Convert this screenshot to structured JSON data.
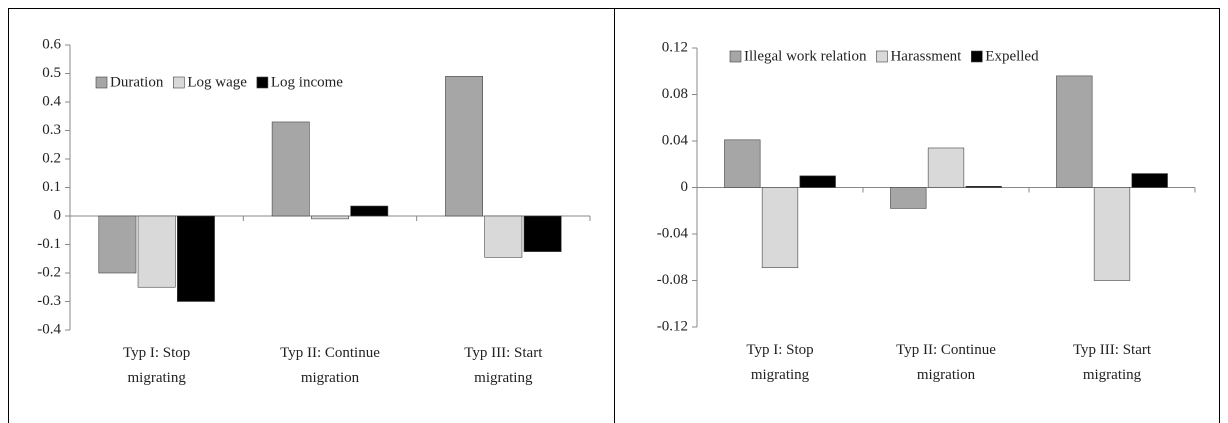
{
  "chart_data": [
    {
      "type": "bar",
      "categories": [
        "Typ I: Stop\nmigrating",
        "Typ II: Continue\nmigration",
        "Typ III: Start\nmigrating"
      ],
      "series": [
        {
          "name": "Duration",
          "color": "#a6a6a6",
          "values": [
            -0.2,
            0.33,
            0.49
          ]
        },
        {
          "name": "Log wage",
          "color": "#d9d9d9",
          "values": [
            -0.25,
            -0.01,
            -0.145
          ]
        },
        {
          "name": "Log income",
          "color": "#000000",
          "values": [
            -0.3,
            0.035,
            -0.125
          ]
        }
      ],
      "ylim": [
        -0.4,
        0.6
      ],
      "yticks": [
        -0.4,
        -0.3,
        -0.2,
        -0.1,
        0,
        0.1,
        0.2,
        0.3,
        0.4,
        0.5,
        0.6
      ],
      "grid": false,
      "legend": "top-left"
    },
    {
      "type": "bar",
      "categories": [
        "Typ I: Stop\nmigrating",
        "Typ II: Continue\nmigration",
        "Typ III: Start\nmigrating"
      ],
      "series": [
        {
          "name": "Illegal work relation",
          "color": "#a6a6a6",
          "values": [
            0.041,
            -0.018,
            0.096
          ]
        },
        {
          "name": "Harassment",
          "color": "#d9d9d9",
          "values": [
            -0.069,
            0.034,
            -0.08
          ]
        },
        {
          "name": "Expelled",
          "color": "#000000",
          "values": [
            0.01,
            0.001,
            0.012
          ]
        }
      ],
      "ylim": [
        -0.12,
        0.12
      ],
      "yticks": [
        -0.12,
        -0.08,
        -0.04,
        0,
        0.04,
        0.08,
        0.12
      ],
      "grid": false,
      "legend": "top-left"
    }
  ]
}
